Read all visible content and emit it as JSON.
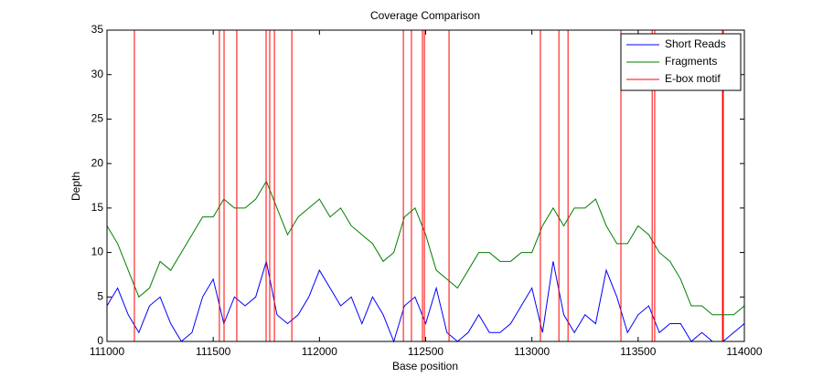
{
  "chart_data": {
    "type": "line",
    "title": "Coverage Comparison",
    "x_label": "Base position",
    "y_label": "Depth",
    "x": [
      111000,
      111050,
      111100,
      111150,
      111200,
      111250,
      111300,
      111350,
      111400,
      111450,
      111500,
      111550,
      111600,
      111650,
      111700,
      111750,
      111800,
      111850,
      111900,
      111950,
      112000,
      112050,
      112100,
      112150,
      112200,
      112250,
      112300,
      112350,
      112400,
      112450,
      112500,
      112550,
      112600,
      112650,
      112700,
      112750,
      112800,
      112850,
      112900,
      112950,
      113000,
      113050,
      113100,
      113150,
      113200,
      113250,
      113300,
      113350,
      113400,
      113450,
      113500,
      113550,
      113600,
      113650,
      113700,
      113750,
      113800,
      113850,
      113900,
      113950,
      114000
    ],
    "series": [
      {
        "name": "Short Reads",
        "color": "#0000ff",
        "values": [
          4,
          6,
          3,
          1,
          4,
          5,
          2,
          0,
          1,
          5,
          7,
          2,
          5,
          4,
          5,
          9,
          3,
          2,
          3,
          5,
          8,
          6,
          4,
          5,
          2,
          5,
          3,
          0,
          4,
          5,
          2,
          6,
          1,
          0,
          1,
          3,
          1,
          1,
          2,
          4,
          6,
          1,
          9,
          3,
          1,
          3,
          2,
          8,
          5,
          1,
          3,
          4,
          1,
          2,
          2,
          0,
          1,
          0,
          0,
          1,
          2
        ]
      },
      {
        "name": "Fragments",
        "color": "#007f00",
        "values": [
          13,
          11,
          8,
          5,
          6,
          9,
          8,
          10,
          12,
          14,
          14,
          16,
          15,
          15,
          16,
          18,
          15,
          12,
          14,
          15,
          16,
          14,
          15,
          13,
          12,
          11,
          9,
          10,
          14,
          15,
          12,
          8,
          7,
          6,
          8,
          10,
          10,
          9,
          9,
          10,
          10,
          13,
          15,
          13,
          15,
          15,
          16,
          13,
          11,
          11,
          13,
          12,
          10,
          9,
          7,
          4,
          4,
          3,
          3,
          3,
          4
        ]
      },
      {
        "name": "E-box motif",
        "color": "#ff0000",
        "positions": [
          111129,
          111529,
          111551,
          111611,
          111749,
          111766,
          111788,
          111870,
          112395,
          112433,
          112485,
          112494,
          112610,
          113040,
          113127,
          113170,
          113419,
          113566,
          113578,
          113897,
          113901
        ]
      }
    ],
    "xlim": [
      111000,
      114000
    ],
    "xticks": [
      111000,
      111500,
      112000,
      112500,
      113000,
      113500,
      114000
    ],
    "ylim": [
      0,
      35
    ],
    "yticks": [
      0,
      5,
      10,
      15,
      20,
      25,
      30,
      35
    ],
    "legend": "top-right"
  }
}
